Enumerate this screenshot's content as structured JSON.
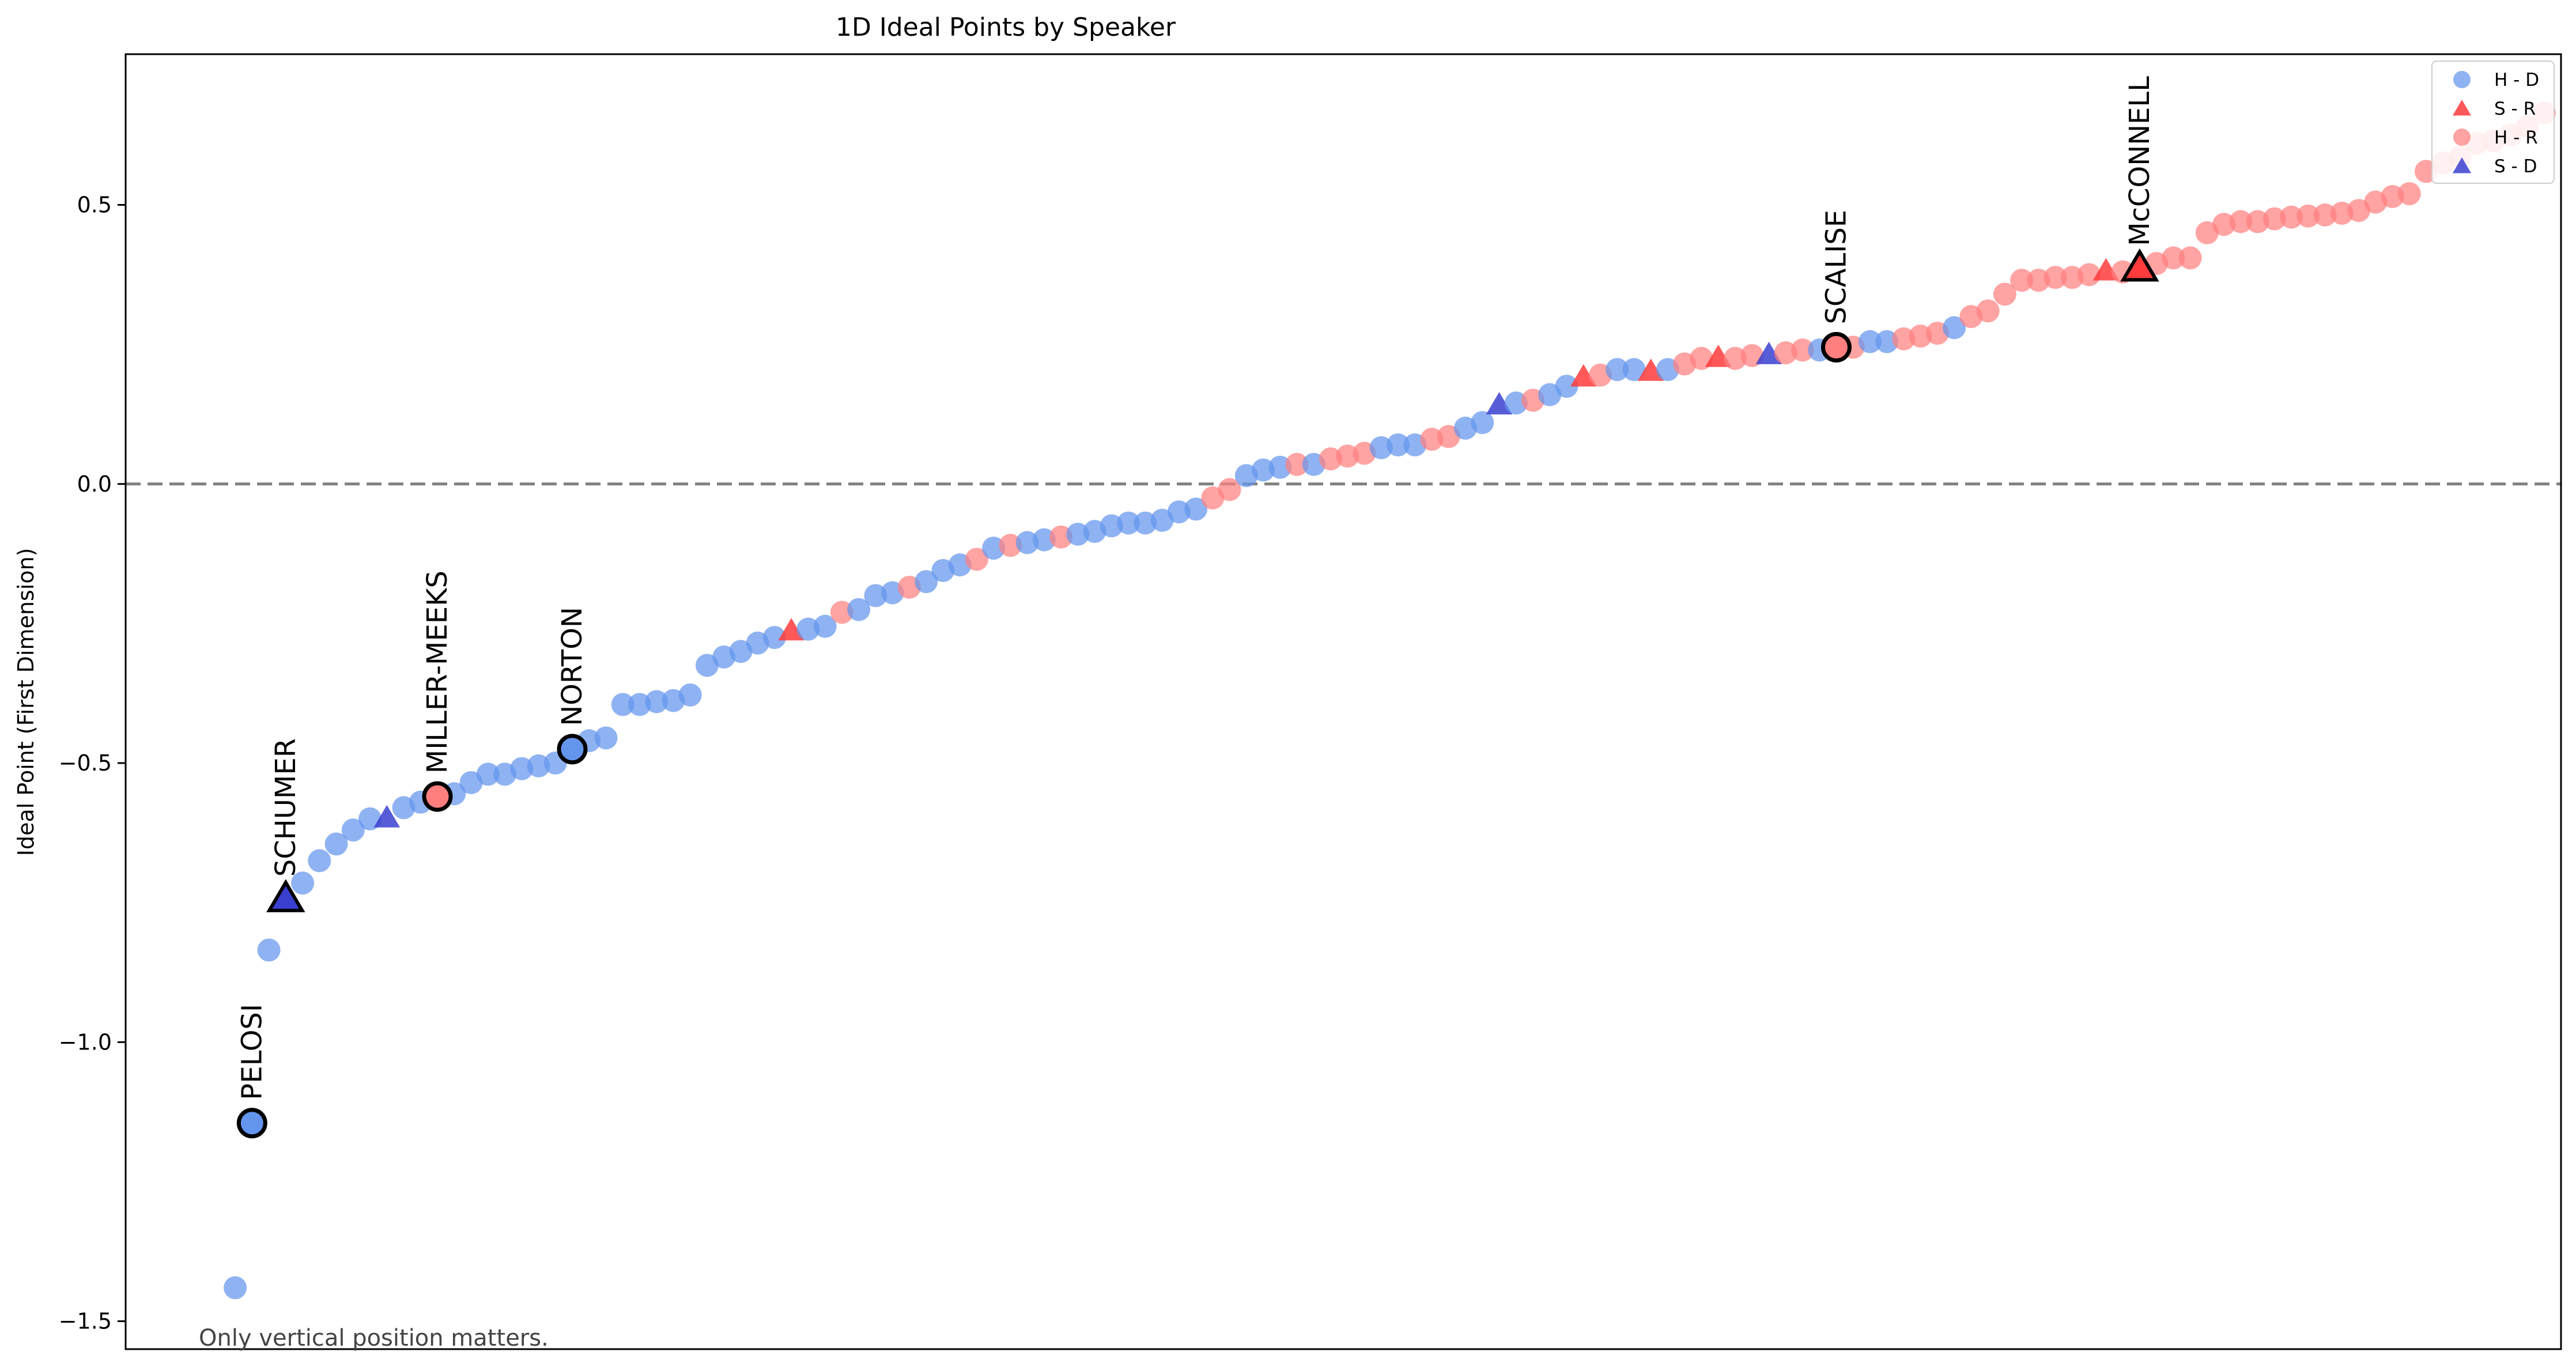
{
  "chart_data": {
    "type": "scatter",
    "title": "1D Ideal Points by Speaker",
    "xlabel": "",
    "ylabel": "Ideal Point (First Dimension)",
    "ylim": [
      -1.55,
      0.77
    ],
    "xlim": [
      -6.5,
      138
    ],
    "yticks": [
      0.5,
      0.0,
      -0.5,
      -1.0,
      -1.5
    ],
    "ytick_labels": [
      "0.5",
      "0.0",
      "−0.5",
      "−1.0",
      "−1.5"
    ],
    "xticks_visible": false,
    "reference_line": {
      "y": 0.0,
      "style": "dashed",
      "color": "#808080"
    },
    "note": "Only vertical position matters.",
    "legend_position": "top-right",
    "groups": [
      {
        "key": "H-D",
        "label": "H - D",
        "marker": "circle",
        "color": "#6495ED"
      },
      {
        "key": "S-R",
        "label": "S - R",
        "marker": "triangle",
        "color": "#FF3B3B"
      },
      {
        "key": "H-R",
        "label": "H - R",
        "marker": "circle",
        "color": "#FF7F7F"
      },
      {
        "key": "S-D",
        "label": "S - D",
        "marker": "triangle",
        "color": "#3A3FD0"
      }
    ],
    "points": [
      {
        "x": 0,
        "y": -1.44,
        "g": "H-D"
      },
      {
        "x": 1,
        "y": -1.145,
        "g": "H-D",
        "label": "PELOSI"
      },
      {
        "x": 2,
        "y": -0.835,
        "g": "H-D"
      },
      {
        "x": 3,
        "y": -0.745,
        "g": "S-D",
        "label": "SCHUMER"
      },
      {
        "x": 4,
        "y": -0.715,
        "g": "H-D"
      },
      {
        "x": 5,
        "y": -0.675,
        "g": "H-D"
      },
      {
        "x": 6,
        "y": -0.645,
        "g": "H-D"
      },
      {
        "x": 7,
        "y": -0.62,
        "g": "H-D"
      },
      {
        "x": 8,
        "y": -0.6,
        "g": "H-D"
      },
      {
        "x": 9,
        "y": -0.6,
        "g": "S-D"
      },
      {
        "x": 10,
        "y": -0.58,
        "g": "H-D"
      },
      {
        "x": 11,
        "y": -0.57,
        "g": "H-D"
      },
      {
        "x": 12,
        "y": -0.56,
        "g": "H-R",
        "label": "MILLER-MEEKS"
      },
      {
        "x": 13,
        "y": -0.555,
        "g": "H-D"
      },
      {
        "x": 14,
        "y": -0.535,
        "g": "H-D"
      },
      {
        "x": 15,
        "y": -0.52,
        "g": "H-D"
      },
      {
        "x": 16,
        "y": -0.52,
        "g": "H-D"
      },
      {
        "x": 17,
        "y": -0.51,
        "g": "H-D"
      },
      {
        "x": 18,
        "y": -0.505,
        "g": "H-D"
      },
      {
        "x": 19,
        "y": -0.5,
        "g": "H-D"
      },
      {
        "x": 20,
        "y": -0.475,
        "g": "H-D",
        "label": "NORTON"
      },
      {
        "x": 21,
        "y": -0.46,
        "g": "H-D"
      },
      {
        "x": 22,
        "y": -0.455,
        "g": "H-D"
      },
      {
        "x": 23,
        "y": -0.395,
        "g": "H-D"
      },
      {
        "x": 24,
        "y": -0.395,
        "g": "H-D"
      },
      {
        "x": 25,
        "y": -0.39,
        "g": "H-D"
      },
      {
        "x": 26,
        "y": -0.388,
        "g": "H-D"
      },
      {
        "x": 27,
        "y": -0.378,
        "g": "H-D"
      },
      {
        "x": 28,
        "y": -0.325,
        "g": "H-D"
      },
      {
        "x": 29,
        "y": -0.31,
        "g": "H-D"
      },
      {
        "x": 30,
        "y": -0.3,
        "g": "H-D"
      },
      {
        "x": 31,
        "y": -0.285,
        "g": "H-D"
      },
      {
        "x": 32,
        "y": -0.275,
        "g": "H-D"
      },
      {
        "x": 33,
        "y": -0.265,
        "g": "S-R"
      },
      {
        "x": 34,
        "y": -0.26,
        "g": "H-D"
      },
      {
        "x": 35,
        "y": -0.255,
        "g": "H-D"
      },
      {
        "x": 36,
        "y": -0.23,
        "g": "H-R"
      },
      {
        "x": 37,
        "y": -0.225,
        "g": "H-D"
      },
      {
        "x": 38,
        "y": -0.2,
        "g": "H-D"
      },
      {
        "x": 39,
        "y": -0.195,
        "g": "H-D"
      },
      {
        "x": 40,
        "y": -0.185,
        "g": "H-R"
      },
      {
        "x": 41,
        "y": -0.175,
        "g": "H-D"
      },
      {
        "x": 42,
        "y": -0.155,
        "g": "H-D"
      },
      {
        "x": 43,
        "y": -0.145,
        "g": "H-D"
      },
      {
        "x": 44,
        "y": -0.135,
        "g": "H-R"
      },
      {
        "x": 45,
        "y": -0.115,
        "g": "H-D"
      },
      {
        "x": 46,
        "y": -0.11,
        "g": "H-R"
      },
      {
        "x": 47,
        "y": -0.105,
        "g": "H-D"
      },
      {
        "x": 48,
        "y": -0.1,
        "g": "H-D"
      },
      {
        "x": 49,
        "y": -0.095,
        "g": "H-R"
      },
      {
        "x": 50,
        "y": -0.09,
        "g": "H-D"
      },
      {
        "x": 51,
        "y": -0.085,
        "g": "H-D"
      },
      {
        "x": 52,
        "y": -0.075,
        "g": "H-D"
      },
      {
        "x": 53,
        "y": -0.07,
        "g": "H-D"
      },
      {
        "x": 54,
        "y": -0.07,
        "g": "H-D"
      },
      {
        "x": 55,
        "y": -0.065,
        "g": "H-D"
      },
      {
        "x": 56,
        "y": -0.05,
        "g": "H-D"
      },
      {
        "x": 57,
        "y": -0.045,
        "g": "H-D"
      },
      {
        "x": 58,
        "y": -0.025,
        "g": "H-R"
      },
      {
        "x": 59,
        "y": -0.01,
        "g": "H-R"
      },
      {
        "x": 60,
        "y": 0.015,
        "g": "H-D"
      },
      {
        "x": 61,
        "y": 0.025,
        "g": "H-D"
      },
      {
        "x": 62,
        "y": 0.03,
        "g": "H-D"
      },
      {
        "x": 63,
        "y": 0.035,
        "g": "H-R"
      },
      {
        "x": 64,
        "y": 0.035,
        "g": "H-D"
      },
      {
        "x": 65,
        "y": 0.045,
        "g": "H-R"
      },
      {
        "x": 66,
        "y": 0.05,
        "g": "H-R"
      },
      {
        "x": 67,
        "y": 0.055,
        "g": "H-R"
      },
      {
        "x": 68,
        "y": 0.065,
        "g": "H-D"
      },
      {
        "x": 69,
        "y": 0.07,
        "g": "H-D"
      },
      {
        "x": 70,
        "y": 0.07,
        "g": "H-D"
      },
      {
        "x": 71,
        "y": 0.08,
        "g": "H-R"
      },
      {
        "x": 72,
        "y": 0.085,
        "g": "H-R"
      },
      {
        "x": 73,
        "y": 0.1,
        "g": "H-D"
      },
      {
        "x": 74,
        "y": 0.11,
        "g": "H-D"
      },
      {
        "x": 75,
        "y": 0.14,
        "g": "S-D"
      },
      {
        "x": 76,
        "y": 0.145,
        "g": "H-D"
      },
      {
        "x": 77,
        "y": 0.15,
        "g": "H-R"
      },
      {
        "x": 78,
        "y": 0.16,
        "g": "H-D"
      },
      {
        "x": 79,
        "y": 0.175,
        "g": "H-D"
      },
      {
        "x": 80,
        "y": 0.19,
        "g": "S-R"
      },
      {
        "x": 81,
        "y": 0.195,
        "g": "H-R"
      },
      {
        "x": 82,
        "y": 0.205,
        "g": "H-D"
      },
      {
        "x": 83,
        "y": 0.205,
        "g": "H-D"
      },
      {
        "x": 84,
        "y": 0.2,
        "g": "S-R"
      },
      {
        "x": 85,
        "y": 0.205,
        "g": "H-D"
      },
      {
        "x": 86,
        "y": 0.215,
        "g": "H-R"
      },
      {
        "x": 87,
        "y": 0.225,
        "g": "H-R"
      },
      {
        "x": 88,
        "y": 0.225,
        "g": "S-R"
      },
      {
        "x": 89,
        "y": 0.225,
        "g": "H-R"
      },
      {
        "x": 90,
        "y": 0.23,
        "g": "H-R"
      },
      {
        "x": 91,
        "y": 0.23,
        "g": "S-D"
      },
      {
        "x": 92,
        "y": 0.235,
        "g": "H-R"
      },
      {
        "x": 93,
        "y": 0.24,
        "g": "H-R"
      },
      {
        "x": 94,
        "y": 0.24,
        "g": "H-D"
      },
      {
        "x": 95,
        "y": 0.245,
        "g": "H-R",
        "label": "SCALISE"
      },
      {
        "x": 96,
        "y": 0.245,
        "g": "H-R"
      },
      {
        "x": 97,
        "y": 0.255,
        "g": "H-D"
      },
      {
        "x": 98,
        "y": 0.255,
        "g": "H-D"
      },
      {
        "x": 99,
        "y": 0.26,
        "g": "H-R"
      },
      {
        "x": 100,
        "y": 0.265,
        "g": "H-R"
      },
      {
        "x": 101,
        "y": 0.27,
        "g": "H-R"
      },
      {
        "x": 102,
        "y": 0.28,
        "g": "H-D"
      },
      {
        "x": 103,
        "y": 0.3,
        "g": "H-R"
      },
      {
        "x": 104,
        "y": 0.31,
        "g": "H-R"
      },
      {
        "x": 105,
        "y": 0.34,
        "g": "H-R"
      },
      {
        "x": 106,
        "y": 0.365,
        "g": "H-R"
      },
      {
        "x": 107,
        "y": 0.365,
        "g": "H-R"
      },
      {
        "x": 108,
        "y": 0.37,
        "g": "H-R"
      },
      {
        "x": 109,
        "y": 0.37,
        "g": "H-R"
      },
      {
        "x": 110,
        "y": 0.375,
        "g": "H-R"
      },
      {
        "x": 111,
        "y": 0.38,
        "g": "S-R"
      },
      {
        "x": 112,
        "y": 0.38,
        "g": "H-R"
      },
      {
        "x": 113,
        "y": 0.385,
        "g": "S-R",
        "label": "McCONNELL"
      },
      {
        "x": 114,
        "y": 0.395,
        "g": "H-R"
      },
      {
        "x": 115,
        "y": 0.405,
        "g": "H-R"
      },
      {
        "x": 116,
        "y": 0.405,
        "g": "H-R"
      },
      {
        "x": 117,
        "y": 0.45,
        "g": "H-R"
      },
      {
        "x": 118,
        "y": 0.465,
        "g": "H-R"
      },
      {
        "x": 119,
        "y": 0.47,
        "g": "H-R"
      },
      {
        "x": 120,
        "y": 0.47,
        "g": "H-R"
      },
      {
        "x": 121,
        "y": 0.475,
        "g": "H-R"
      },
      {
        "x": 122,
        "y": 0.478,
        "g": "H-R"
      },
      {
        "x": 123,
        "y": 0.48,
        "g": "H-R"
      },
      {
        "x": 124,
        "y": 0.482,
        "g": "H-R"
      },
      {
        "x": 125,
        "y": 0.485,
        "g": "H-R"
      },
      {
        "x": 126,
        "y": 0.49,
        "g": "H-R"
      },
      {
        "x": 127,
        "y": 0.505,
        "g": "H-R"
      },
      {
        "x": 128,
        "y": 0.515,
        "g": "H-R"
      },
      {
        "x": 129,
        "y": 0.52,
        "g": "H-R"
      },
      {
        "x": 130,
        "y": 0.56,
        "g": "H-R"
      },
      {
        "x": 131,
        "y": 0.575,
        "g": "H-R"
      },
      {
        "x": 132,
        "y": 0.585,
        "g": "H-R"
      },
      {
        "x": 133,
        "y": 0.61,
        "g": "H-R"
      },
      {
        "x": 134,
        "y": 0.615,
        "g": "H-R"
      },
      {
        "x": 135,
        "y": 0.625,
        "g": "H-R"
      },
      {
        "x": 136,
        "y": 0.64,
        "g": "H-R"
      },
      {
        "x": 137,
        "y": 0.665,
        "g": "H-R"
      }
    ]
  }
}
